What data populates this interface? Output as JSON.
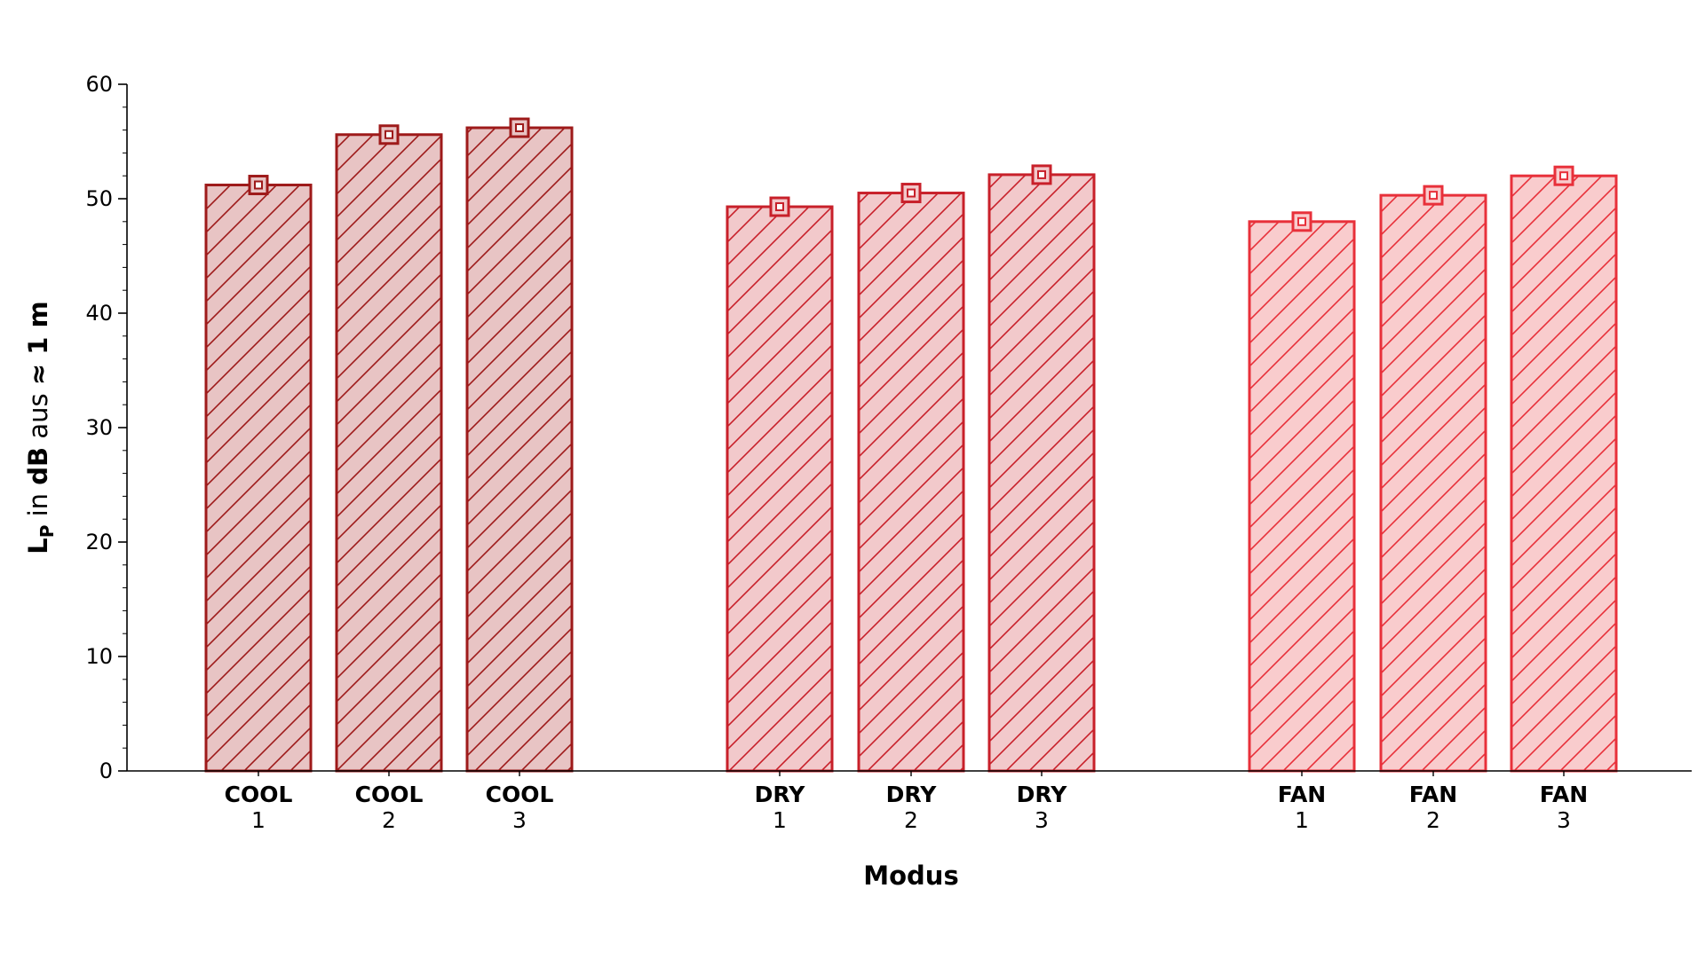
{
  "chart_data": {
    "type": "bar",
    "xlabel": "Modus",
    "ylabel": {
      "symbol": "L",
      "subscript": "P",
      "in": " in ",
      "unit": "dB",
      "aus": " aus ",
      "distance": "≈ 1 m"
    },
    "ylim": [
      0,
      60
    ],
    "yticks": [
      "0",
      "10",
      "20",
      "30",
      "40",
      "50",
      "60"
    ],
    "grid": false,
    "legend": "none",
    "categories": [
      {
        "mode": "COOL",
        "level": "1"
      },
      {
        "mode": "COOL",
        "level": "2"
      },
      {
        "mode": "COOL",
        "level": "3"
      },
      {
        "mode": "DRY",
        "level": "1"
      },
      {
        "mode": "DRY",
        "level": "2"
      },
      {
        "mode": "DRY",
        "level": "3"
      },
      {
        "mode": "FAN",
        "level": "1"
      },
      {
        "mode": "FAN",
        "level": "2"
      },
      {
        "mode": "FAN",
        "level": "3"
      }
    ],
    "values": [
      51.2,
      55.6,
      56.2,
      49.3,
      50.5,
      52.1,
      48.0,
      50.3,
      52.0
    ],
    "colors": {
      "COOL": {
        "edge": "#9e1a1a",
        "fill": "#e8c4c4"
      },
      "DRY": {
        "edge": "#c8202a",
        "fill": "#f2c9cb"
      },
      "FAN": {
        "edge": "#e8303a",
        "fill": "#f9cccd"
      }
    }
  }
}
